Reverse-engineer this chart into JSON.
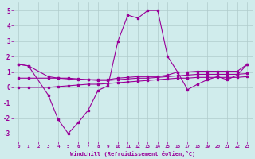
{
  "color": "#990099",
  "bg_color": "#d0ecec",
  "grid_color": "#b0cccc",
  "xlabel": "Windchill (Refroidissement éolien,°C)",
  "ylim": [
    -3.5,
    5.5
  ],
  "xlim": [
    -0.5,
    23.5
  ],
  "yticks": [
    -3,
    -2,
    -1,
    0,
    1,
    2,
    3,
    4,
    5
  ],
  "windchill_x": [
    0,
    1,
    3,
    4,
    5,
    6,
    7,
    8,
    9,
    10,
    11,
    12,
    13,
    14,
    15,
    16,
    17,
    18,
    19,
    20,
    21,
    22,
    23
  ],
  "windchill_y": [
    1.5,
    1.4,
    -0.5,
    -2.1,
    -3.0,
    -2.3,
    -1.5,
    -0.2,
    0.1,
    3.0,
    4.7,
    4.5,
    5.0,
    5.0,
    2.0,
    1.0,
    -0.15,
    0.2,
    0.5,
    0.7,
    0.5,
    0.8,
    1.5
  ],
  "line1_x": [
    0,
    1,
    3,
    4,
    5,
    6,
    7,
    8,
    9,
    10,
    11,
    12,
    13,
    14,
    15,
    16,
    17,
    18,
    19,
    20,
    21,
    22,
    23
  ],
  "line1_y": [
    1.5,
    1.4,
    0.7,
    0.6,
    0.55,
    0.5,
    0.5,
    0.5,
    0.5,
    0.6,
    0.65,
    0.7,
    0.7,
    0.7,
    0.8,
    1.0,
    1.0,
    1.05,
    1.05,
    1.05,
    1.05,
    1.05,
    1.5
  ],
  "line2_x": [
    0,
    1,
    3,
    4,
    5,
    6,
    7,
    8,
    9,
    10,
    11,
    12,
    13,
    14,
    15,
    16,
    17,
    18,
    19,
    20,
    21,
    22,
    23
  ],
  "line2_y": [
    0.6,
    0.6,
    0.6,
    0.6,
    0.6,
    0.55,
    0.5,
    0.45,
    0.45,
    0.5,
    0.55,
    0.6,
    0.6,
    0.65,
    0.7,
    0.75,
    0.8,
    0.85,
    0.85,
    0.85,
    0.85,
    0.85,
    0.9
  ],
  "line3_x": [
    0,
    1,
    3,
    4,
    5,
    6,
    7,
    8,
    9,
    10,
    11,
    12,
    13,
    14,
    15,
    16,
    17,
    18,
    19,
    20,
    21,
    22,
    23
  ],
  "line3_y": [
    0.0,
    0.0,
    0.0,
    0.05,
    0.1,
    0.15,
    0.2,
    0.2,
    0.25,
    0.3,
    0.35,
    0.4,
    0.45,
    0.5,
    0.55,
    0.6,
    0.6,
    0.65,
    0.65,
    0.65,
    0.65,
    0.65,
    0.7
  ]
}
